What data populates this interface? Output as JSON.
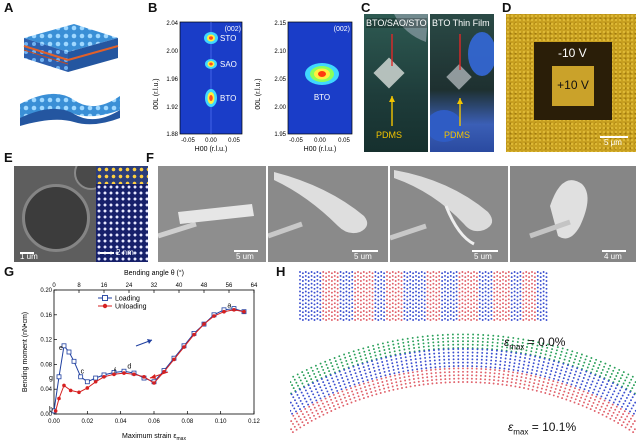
{
  "panels": {
    "A": {
      "label": "A"
    },
    "B": {
      "label": "B",
      "map1": {
        "badge": "(002)",
        "peaks": [
          "STO",
          "SAO",
          "BTO"
        ],
        "ylabel": "00L (r.l.u.)",
        "xlabel": "H00 (r.l.u.)",
        "yticks": [
          "2.04",
          "2.00",
          "1.96",
          "1.92",
          "1.88"
        ],
        "xticks": [
          "-0.05",
          "0.00",
          "0.05"
        ]
      },
      "map2": {
        "badge": "(002)",
        "peak": "BTO",
        "ylabel": "00L (r.l.u.)",
        "xlabel": "H00 (r.l.u.)",
        "yticks": [
          "2.15",
          "2.10",
          "2.05",
          "2.00",
          "1.95"
        ],
        "xticks": [
          "-0.05",
          "0.00",
          "0.05"
        ]
      }
    },
    "C": {
      "label": "C",
      "photo1": {
        "title": "BTO/SAO/STO",
        "substrate": "PDMS"
      },
      "photo2": {
        "title": "BTO Thin Film",
        "substrate": "PDMS"
      }
    },
    "D": {
      "label": "D",
      "outer": "-10 V",
      "inner": "+10 V",
      "scale": "5 μm"
    },
    "E": {
      "label": "E",
      "scale1": "1 um",
      "scale2": "2 nm"
    },
    "F": {
      "label": "F",
      "scales": [
        "5 um",
        "5 um",
        "5 um",
        "4 um"
      ]
    },
    "G": {
      "label": "G"
    },
    "H": {
      "label": "H",
      "top_label": "ε",
      "top_sub": "max",
      "top_value": " = 0.0%",
      "bottom_label": "ε",
      "bottom_sub": "max",
      "bottom_value": " = 10.1%"
    }
  },
  "chart_data": {
    "type": "line",
    "xlabel": "Maximum strain ε",
    "xlabel_sub": "max",
    "top_xlabel": "Bending angle θ (°)",
    "ylabel": "Bending moment (nN•cm)",
    "xlim": [
      0,
      0.12
    ],
    "ylim": [
      0,
      0.2
    ],
    "x_ticks": [
      "0.00",
      "0.02",
      "0.04",
      "0.06",
      "0.08",
      "0.10",
      "0.12"
    ],
    "y_ticks": [
      "0.00",
      "0.04",
      "0.08",
      "0.12",
      "0.16",
      "0.20"
    ],
    "top_ticks": [
      "0",
      "8",
      "16",
      "24",
      "32",
      "40",
      "48",
      "56",
      "64"
    ],
    "legend_position": "top-center",
    "series": [
      {
        "name": "Loading",
        "color": "#1f3fa0",
        "marker": "square",
        "x": [
          0.0,
          0.003,
          0.006,
          0.009,
          0.012,
          0.016,
          0.02,
          0.025,
          0.03,
          0.036,
          0.042,
          0.048,
          0.054,
          0.06,
          0.066,
          0.072,
          0.078,
          0.084,
          0.09,
          0.096,
          0.102,
          0.108,
          0.114
        ],
        "y": [
          0.005,
          0.06,
          0.11,
          0.1,
          0.085,
          0.06,
          0.052,
          0.058,
          0.063,
          0.067,
          0.069,
          0.066,
          0.058,
          0.052,
          0.07,
          0.09,
          0.11,
          0.13,
          0.145,
          0.16,
          0.168,
          0.17,
          0.165
        ]
      },
      {
        "name": "Unloading",
        "color": "#d62020",
        "marker": "dot",
        "x": [
          0.114,
          0.108,
          0.102,
          0.096,
          0.09,
          0.084,
          0.078,
          0.072,
          0.066,
          0.06,
          0.054,
          0.048,
          0.042,
          0.036,
          0.03,
          0.025,
          0.02,
          0.015,
          0.01,
          0.006,
          0.003,
          0.001
        ],
        "y": [
          0.165,
          0.168,
          0.165,
          0.158,
          0.145,
          0.128,
          0.108,
          0.088,
          0.068,
          0.05,
          0.06,
          0.064,
          0.066,
          0.064,
          0.06,
          0.052,
          0.042,
          0.035,
          0.038,
          0.046,
          0.025,
          0.005
        ]
      }
    ],
    "annotations": [
      {
        "text": "a",
        "x": 0.104,
        "y": 0.172
      },
      {
        "text": "b",
        "x": -0.003,
        "y": 0.004
      },
      {
        "text": "c",
        "x": 0.016,
        "y": 0.065
      },
      {
        "text": "d",
        "x": 0.044,
        "y": 0.073
      },
      {
        "text": "e",
        "x": 0.003,
        "y": 0.103
      },
      {
        "text": "f",
        "x": 0.036,
        "y": 0.066
      },
      {
        "text": "g",
        "x": -0.003,
        "y": 0.055
      }
    ]
  }
}
